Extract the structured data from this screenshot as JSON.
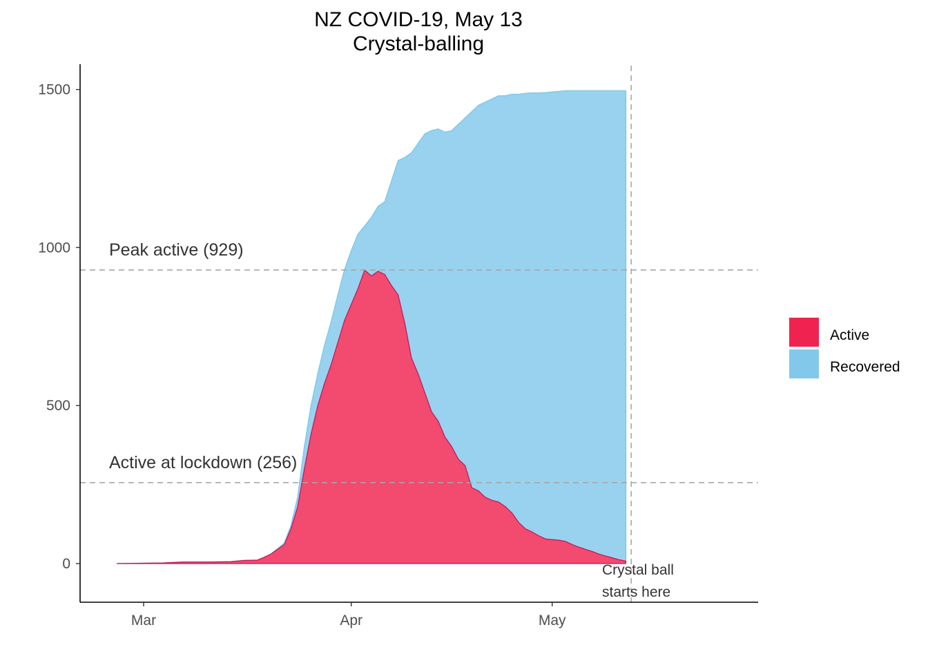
{
  "chart_data": {
    "type": "area",
    "title": "NZ COVID-19, May 13",
    "subtitle": "Crystal-balling",
    "xlabel": "",
    "ylabel": "",
    "ylim": [
      -125,
      1575
    ],
    "y_ticks": [
      0,
      500,
      1000,
      1500
    ],
    "x_ticks": [
      {
        "label": "Mar",
        "day": 0
      },
      {
        "label": "Apr",
        "day": 31
      },
      {
        "label": "May",
        "day": 61
      }
    ],
    "x_unit": "days since Mar 1",
    "legend": [
      {
        "name": "Active",
        "color": "#f0224f"
      },
      {
        "name": "Recovered",
        "color": "#82c8ea"
      }
    ],
    "stack_order": [
      "Active",
      "Recovered"
    ],
    "series": [
      {
        "name": "Active",
        "x": [
          -4,
          3,
          6,
          10,
          13,
          15,
          17,
          18,
          19,
          20,
          21,
          22,
          23,
          24,
          25,
          26,
          27,
          28,
          29,
          30,
          31,
          32,
          33,
          34,
          35,
          36,
          37,
          38,
          39,
          40,
          41,
          42,
          43,
          44,
          45,
          46,
          47,
          48,
          49,
          50,
          51,
          52,
          53,
          54,
          55,
          56,
          57,
          58,
          59,
          60,
          61,
          62,
          63,
          64,
          65,
          66,
          67,
          68,
          69,
          70,
          71,
          72
        ],
        "values": [
          0,
          2,
          5,
          5,
          6,
          10,
          11,
          20,
          30,
          45,
          60,
          110,
          180,
          300,
          410,
          500,
          570,
          630,
          700,
          770,
          820,
          870,
          929,
          910,
          925,
          915,
          880,
          850,
          760,
          650,
          600,
          540,
          480,
          450,
          400,
          370,
          330,
          310,
          240,
          230,
          210,
          200,
          195,
          180,
          160,
          130,
          110,
          100,
          88,
          78,
          76,
          74,
          70,
          60,
          52,
          45,
          38,
          30,
          24,
          18,
          12,
          8
        ]
      },
      {
        "name": "Recovered",
        "x": [
          -4,
          3,
          6,
          10,
          13,
          15,
          17,
          18,
          19,
          20,
          21,
          22,
          23,
          24,
          25,
          26,
          27,
          28,
          29,
          30,
          31,
          32,
          33,
          34,
          35,
          36,
          37,
          38,
          39,
          40,
          41,
          42,
          43,
          44,
          45,
          46,
          47,
          48,
          49,
          50,
          51,
          52,
          53,
          54,
          55,
          56,
          57,
          58,
          59,
          60,
          61,
          62,
          63,
          64,
          65,
          66,
          67,
          68,
          69,
          70,
          71,
          72
        ],
        "values": [
          0,
          0,
          0,
          0,
          0,
          0,
          0,
          0,
          0,
          2,
          5,
          10,
          30,
          70,
          90,
          100,
          120,
          135,
          150,
          160,
          170,
          172,
          139,
          185,
          205,
          230,
          330,
          425,
          525,
          650,
          730,
          820,
          890,
          925,
          965,
          1000,
          1060,
          1100,
          1190,
          1220,
          1250,
          1270,
          1285,
          1300,
          1325,
          1355,
          1378,
          1389,
          1401,
          1412,
          1416,
          1420,
          1426,
          1436,
          1444,
          1451,
          1458,
          1466,
          1472,
          1478,
          1484,
          1488
        ]
      }
    ],
    "forecast_start_day": 73,
    "reference_lines": [
      {
        "label": "Peak active (929)",
        "y": 929
      },
      {
        "label": "Active at lockdown (256)",
        "y": 256
      }
    ],
    "annotations": [
      {
        "text_line1": "Crystal ball",
        "text_line2": "starts here"
      }
    ]
  }
}
